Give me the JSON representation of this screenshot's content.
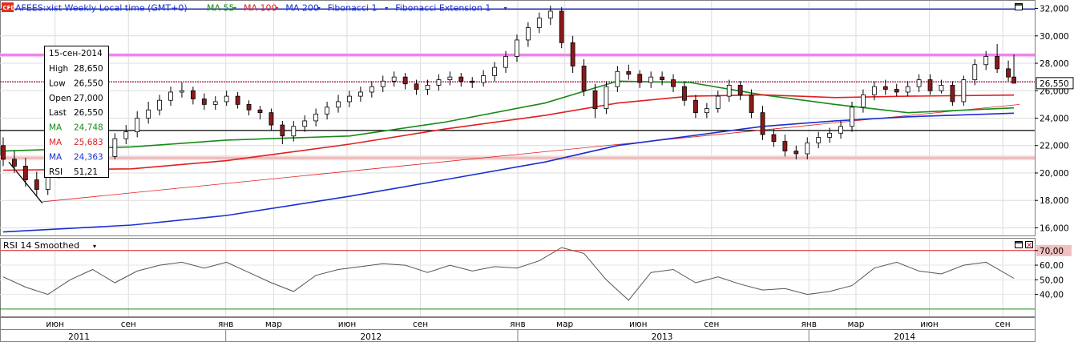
{
  "header": {
    "cfd_badge": "CFD",
    "symbol": "AFEES:xist Weekly Local time (GMT+0)",
    "indicators": [
      {
        "label": "MA 55",
        "color": "#178a17"
      },
      {
        "label": "MA 100",
        "color": "#e02020"
      },
      {
        "label": "MA 200",
        "color": "#1a2fd0"
      },
      {
        "label": "Fibonacci 1",
        "color": "#1a2fd0"
      },
      {
        "label": "Fibonacci Extension 1",
        "color": "#1a2fd0"
      }
    ]
  },
  "tooltip": {
    "date": "15-сен-2014",
    "rows": [
      {
        "label": "High",
        "value": "28,650",
        "color": "#000000"
      },
      {
        "label": "Low",
        "value": "26,550",
        "color": "#000000"
      },
      {
        "label": "Open",
        "value": "27,000",
        "color": "#000000"
      },
      {
        "label": "Last",
        "value": "26,550",
        "color": "#000000"
      },
      {
        "label": "MA",
        "value": "24,748",
        "color": "#178a17"
      },
      {
        "label": "MA",
        "value": "25,683",
        "color": "#e02020"
      },
      {
        "label": "MA",
        "value": "24,363",
        "color": "#1a2fd0"
      },
      {
        "label": "RSI",
        "value": "51,21",
        "color": "#000000"
      }
    ]
  },
  "rsi_panel": {
    "title": "RSI 14 Smoothed"
  },
  "x_axis": {
    "months": [
      {
        "label": "июн",
        "date": "2011-06-01"
      },
      {
        "label": "сен",
        "date": "2011-09-01"
      },
      {
        "label": "янв",
        "date": "2012-01-01"
      },
      {
        "label": "мар",
        "date": "2012-03-01"
      },
      {
        "label": "июн",
        "date": "2012-06-01"
      },
      {
        "label": "сен",
        "date": "2012-09-01"
      },
      {
        "label": "янв",
        "date": "2013-01-01"
      },
      {
        "label": "мар",
        "date": "2013-03-01"
      },
      {
        "label": "июн",
        "date": "2013-06-01"
      },
      {
        "label": "сен",
        "date": "2013-09-01"
      },
      {
        "label": "янв",
        "date": "2014-01-01"
      },
      {
        "label": "мар",
        "date": "2014-03-01"
      },
      {
        "label": "июн",
        "date": "2014-06-01"
      },
      {
        "label": "сен",
        "date": "2014-09-01"
      }
    ],
    "years": [
      {
        "label": "2011",
        "date": "2011-07-01"
      },
      {
        "label": "2012",
        "date": "2012-07-01"
      },
      {
        "label": "2013",
        "date": "2013-07-01"
      },
      {
        "label": "2014",
        "date": "2014-05-01"
      }
    ],
    "year_boundaries": [
      "2012-01-01",
      "2013-01-01",
      "2014-01-01"
    ]
  },
  "chart_data": [
    {
      "type": "candlestick",
      "title": "AFEES:xist Weekly",
      "x_range": [
        "2011-03-28",
        "2014-09-22"
      ],
      "ylim": [
        15500,
        32500
      ],
      "y_ticks": [
        {
          "value": 16000,
          "label": "16,000"
        },
        {
          "value": 18000,
          "label": "18,000"
        },
        {
          "value": 20000,
          "label": "20,000"
        },
        {
          "value": 22000,
          "label": "22,000"
        },
        {
          "value": 24000,
          "label": "24,000"
        },
        {
          "value": 26000,
          "label": "26,000"
        },
        {
          "value": 28000,
          "label": "28,000"
        },
        {
          "value": 30000,
          "label": "30,000"
        },
        {
          "value": 32000,
          "label": "32,000"
        }
      ],
      "last_price": {
        "value": 26550,
        "label": "26,550"
      },
      "grid": true,
      "horizontal_levels": [
        {
          "value": 31950,
          "color": "#1a2fd0"
        },
        {
          "value": 28600,
          "color": "#e040e0"
        },
        {
          "value": 26650,
          "color": "#a0003a"
        },
        {
          "value": 23100,
          "color": "#000000"
        },
        {
          "value": 21100,
          "color": "#e8a0a0"
        }
      ],
      "trendlines": [
        {
          "x": [
            "2011-04-04",
            "2011-05-16"
          ],
          "y": [
            20800,
            17800
          ],
          "color": "#000000"
        },
        {
          "x": [
            "2011-05-16",
            "2014-09-22"
          ],
          "y": [
            17900,
            25000
          ],
          "color": "#e02020"
        }
      ],
      "series": [
        {
          "name": "Price",
          "kind": "ohlc",
          "x": [
            "2011-03-28",
            "2011-04-11",
            "2011-04-25",
            "2011-05-09",
            "2011-05-23",
            "2011-06-06",
            "2011-06-20",
            "2011-07-04",
            "2011-07-18",
            "2011-08-01",
            "2011-08-15",
            "2011-08-29",
            "2011-09-12",
            "2011-09-26",
            "2011-10-10",
            "2011-10-24",
            "2011-11-07",
            "2011-11-21",
            "2011-12-05",
            "2011-12-19",
            "2012-01-02",
            "2012-01-16",
            "2012-01-30",
            "2012-02-13",
            "2012-02-27",
            "2012-03-12",
            "2012-03-26",
            "2012-04-09",
            "2012-04-23",
            "2012-05-07",
            "2012-05-21",
            "2012-06-04",
            "2012-06-18",
            "2012-07-02",
            "2012-07-16",
            "2012-07-30",
            "2012-08-13",
            "2012-08-27",
            "2012-09-10",
            "2012-09-24",
            "2012-10-08",
            "2012-10-22",
            "2012-11-05",
            "2012-11-19",
            "2012-12-03",
            "2012-12-17",
            "2012-12-31",
            "2013-01-14",
            "2013-01-28",
            "2013-02-11",
            "2013-02-25",
            "2013-03-11",
            "2013-03-25",
            "2013-04-08",
            "2013-04-22",
            "2013-05-06",
            "2013-05-20",
            "2013-06-03",
            "2013-06-17",
            "2013-07-01",
            "2013-07-15",
            "2013-07-29",
            "2013-08-12",
            "2013-08-26",
            "2013-09-09",
            "2013-09-23",
            "2013-10-07",
            "2013-10-21",
            "2013-11-04",
            "2013-11-18",
            "2013-12-02",
            "2013-12-16",
            "2013-12-30",
            "2014-01-13",
            "2014-01-27",
            "2014-02-10",
            "2014-02-24",
            "2014-03-10",
            "2014-03-24",
            "2014-04-07",
            "2014-04-21",
            "2014-05-05",
            "2014-05-19",
            "2014-06-02",
            "2014-06-16",
            "2014-06-30",
            "2014-07-14",
            "2014-07-28",
            "2014-08-11",
            "2014-08-25",
            "2014-09-08",
            "2014-09-15"
          ],
          "open": [
            22000,
            21000,
            20500,
            19500,
            18800,
            20000,
            21000,
            21800,
            22200,
            21600,
            21200,
            22500,
            23000,
            24000,
            24600,
            25300,
            25900,
            26000,
            25400,
            25000,
            25200,
            25600,
            25000,
            24600,
            24400,
            23500,
            22700,
            23400,
            23800,
            24300,
            24800,
            25200,
            25600,
            25900,
            26300,
            26700,
            27000,
            26500,
            26100,
            26400,
            26800,
            27000,
            26700,
            26600,
            27100,
            27700,
            28500,
            29700,
            30600,
            31300,
            31800,
            29500,
            27800,
            26000,
            24700,
            26300,
            27400,
            27200,
            26600,
            27000,
            26800,
            26300,
            25300,
            24400,
            24700,
            25600,
            26400,
            25700,
            24400,
            22800,
            22300,
            21600,
            21400,
            22200,
            22600,
            22900,
            23400,
            24800,
            25700,
            26300,
            26100,
            25900,
            26300,
            26800,
            26000,
            26400,
            25200,
            26800,
            27900,
            28500,
            27600,
            27000
          ],
          "close": [
            21000,
            20500,
            19500,
            18800,
            20000,
            21000,
            21800,
            22200,
            21600,
            21200,
            22500,
            23000,
            24000,
            24600,
            25300,
            25900,
            26000,
            25400,
            25000,
            25200,
            25600,
            25000,
            24600,
            24400,
            23500,
            22700,
            23400,
            23800,
            24300,
            24800,
            25200,
            25600,
            25900,
            26300,
            26700,
            27000,
            26500,
            26100,
            26400,
            26800,
            27000,
            26700,
            26600,
            27100,
            27700,
            28500,
            29700,
            30600,
            31300,
            31800,
            29500,
            27800,
            26000,
            24700,
            26300,
            27400,
            27200,
            26600,
            27000,
            26800,
            26300,
            25300,
            24400,
            24700,
            25600,
            26400,
            25700,
            24400,
            22800,
            22300,
            21600,
            21400,
            22200,
            22600,
            22900,
            23400,
            24800,
            25700,
            26300,
            26100,
            25900,
            26300,
            26800,
            26000,
            26400,
            25200,
            26800,
            27900,
            28500,
            27600,
            27000,
            26550
          ],
          "high": [
            22600,
            21600,
            21100,
            20100,
            20400,
            21400,
            22300,
            22800,
            22700,
            21900,
            22900,
            23500,
            24500,
            25200,
            25700,
            26300,
            26600,
            26300,
            25800,
            25600,
            26000,
            25900,
            25300,
            24900,
            24700,
            23800,
            23800,
            24200,
            24700,
            25200,
            25700,
            26000,
            26300,
            26700,
            27100,
            27400,
            27300,
            26800,
            26800,
            27200,
            27400,
            27300,
            27000,
            27500,
            28100,
            28900,
            30100,
            31000,
            31700,
            32200,
            32100,
            30000,
            28300,
            26500,
            26700,
            27800,
            27900,
            27500,
            27400,
            27400,
            27200,
            26700,
            25700,
            25100,
            26000,
            26800,
            26700,
            26100,
            24900,
            23200,
            22800,
            22000,
            22600,
            23000,
            23300,
            23800,
            25200,
            26100,
            26700,
            26800,
            26500,
            26700,
            27200,
            27200,
            26800,
            26700,
            27100,
            28300,
            28900,
            29400,
            28200,
            28650
          ],
          "low": [
            20500,
            20000,
            19000,
            18300,
            18400,
            19600,
            20600,
            21400,
            21200,
            20800,
            21000,
            22100,
            22600,
            23600,
            24200,
            24900,
            25500,
            25000,
            24600,
            24600,
            24900,
            24700,
            24200,
            23900,
            23100,
            22100,
            22300,
            23000,
            23400,
            23900,
            24400,
            24800,
            25200,
            25500,
            25900,
            26300,
            26100,
            25700,
            25700,
            26000,
            26400,
            26300,
            26200,
            26300,
            26700,
            27300,
            28100,
            29200,
            30200,
            30800,
            29100,
            27300,
            25600,
            24000,
            24300,
            25900,
            26800,
            26200,
            26200,
            26400,
            25900,
            24900,
            24000,
            24000,
            24400,
            25200,
            25300,
            24000,
            22400,
            21900,
            21200,
            21000,
            21000,
            21800,
            22200,
            22500,
            23000,
            24400,
            25300,
            25700,
            25600,
            25600,
            25900,
            25700,
            25800,
            24900,
            24900,
            26400,
            27500,
            27300,
            26700,
            26550
          ]
        },
        {
          "name": "MA 55",
          "x": [
            "2011-03-28",
            "2011-09-05",
            "2012-01-02",
            "2012-06-04",
            "2012-10-01",
            "2013-02-04",
            "2013-05-06",
            "2013-08-05",
            "2013-11-04",
            "2014-02-03",
            "2014-05-05",
            "2014-09-15"
          ],
          "y": [
            21600,
            21900,
            22400,
            22700,
            23700,
            25100,
            26700,
            26600,
            25700,
            25000,
            24400,
            24748
          ]
        },
        {
          "name": "MA 100",
          "x": [
            "2011-03-28",
            "2011-09-05",
            "2012-01-02",
            "2012-06-04",
            "2012-10-01",
            "2013-02-04",
            "2013-05-06",
            "2013-08-05",
            "2013-11-04",
            "2014-02-03",
            "2014-05-05",
            "2014-09-15"
          ],
          "y": [
            20200,
            20300,
            20900,
            22100,
            23200,
            24200,
            25100,
            25600,
            25700,
            25500,
            25600,
            25683
          ]
        },
        {
          "name": "MA 200",
          "x": [
            "2011-03-28",
            "2011-09-05",
            "2012-01-02",
            "2012-06-04",
            "2012-10-01",
            "2013-02-04",
            "2013-05-06",
            "2013-08-05",
            "2013-11-04",
            "2014-02-03",
            "2014-05-05",
            "2014-09-15"
          ],
          "y": [
            15700,
            16200,
            16900,
            18300,
            19500,
            20800,
            22000,
            22700,
            23400,
            23800,
            24100,
            24363
          ]
        }
      ]
    },
    {
      "type": "line",
      "title": "RSI 14 Smoothed",
      "ylim": [
        25,
        77
      ],
      "y_ticks": [
        {
          "value": 40,
          "label": "40,00"
        },
        {
          "value": 50,
          "label": "50,00"
        },
        {
          "value": 60,
          "label": "60,00"
        },
        {
          "value": 70,
          "label": "70,00"
        }
      ],
      "levels": [
        {
          "value": 70,
          "color": "#e02020"
        },
        {
          "value": 30,
          "color": "#178a17"
        }
      ],
      "highlight": {
        "value": 70,
        "label": "70,00"
      },
      "series": [
        {
          "name": "RSI",
          "x": [
            "2011-03-28",
            "2011-04-25",
            "2011-05-23",
            "2011-06-20",
            "2011-07-18",
            "2011-08-15",
            "2011-09-12",
            "2011-10-10",
            "2011-11-07",
            "2011-12-05",
            "2012-01-02",
            "2012-01-30",
            "2012-02-27",
            "2012-03-26",
            "2012-04-23",
            "2012-05-21",
            "2012-06-18",
            "2012-07-16",
            "2012-08-13",
            "2012-09-10",
            "2012-10-08",
            "2012-11-05",
            "2012-12-03",
            "2012-12-31",
            "2013-01-28",
            "2013-02-25",
            "2013-03-25",
            "2013-04-22",
            "2013-05-20",
            "2013-06-17",
            "2013-07-15",
            "2013-08-12",
            "2013-09-09",
            "2013-10-07",
            "2013-11-04",
            "2013-12-02",
            "2013-12-30",
            "2014-01-27",
            "2014-02-24",
            "2014-03-24",
            "2014-04-21",
            "2014-05-19",
            "2014-06-16",
            "2014-07-14",
            "2014-08-11",
            "2014-09-15"
          ],
          "y": [
            52,
            45,
            40,
            50,
            57,
            48,
            56,
            60,
            62,
            58,
            62,
            55,
            48,
            42,
            53,
            57,
            59,
            61,
            60,
            55,
            60,
            56,
            59,
            58,
            63,
            72,
            68,
            50,
            36,
            55,
            57,
            48,
            52,
            47,
            43,
            44,
            40,
            42,
            46,
            58,
            62,
            56,
            54,
            60,
            62,
            51
          ]
        }
      ]
    }
  ]
}
